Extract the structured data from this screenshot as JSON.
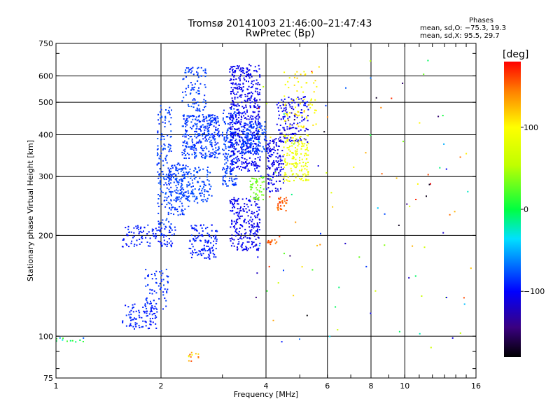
{
  "title": "Tromsø 20141003 21:46:00–21:47:43",
  "subtitle": "RwPretec (Bp)",
  "phases": {
    "heading": "Phases",
    "o_line": "mean, sd,O: −75.3, 19.3",
    "x_line": "mean, sd,X:  95.5, 29.7"
  },
  "chart_data": {
    "type": "scatter",
    "title": "Tromsø 20141003 21:46:00–21:47:43",
    "subtitle": "RwPretec (Bp)",
    "xlabel": "Frequency [MHz]",
    "ylabel": "Stationary phase Virtual Height [km]",
    "x_scale": "log",
    "y_scale": "log",
    "xlim": [
      1,
      16
    ],
    "ylim": [
      75,
      750
    ],
    "x_ticks": [
      1,
      2,
      4,
      6,
      8,
      10,
      16
    ],
    "x_tick_labels": [
      "1",
      "2",
      "4",
      "6",
      "8",
      "10",
      "16"
    ],
    "y_ticks": [
      75,
      100,
      200,
      300,
      400,
      500,
      600,
      750
    ],
    "y_tick_labels": [
      "75",
      "100",
      "200",
      "300",
      "400",
      "500",
      "600",
      "750"
    ],
    "grid": true,
    "colorbar": {
      "label": "[deg]",
      "range": [
        -180,
        180
      ],
      "ticks": [
        100,
        0,
        -100
      ],
      "tick_labels": [
        "100",
        "0",
        "−100"
      ]
    },
    "clusters": [
      {
        "x": [
          1.55,
          1.95
        ],
        "y": [
          105,
          125
        ],
        "n": 90,
        "phase": [
          -100,
          -85
        ]
      },
      {
        "x": [
          1.8,
          2.1
        ],
        "y": [
          120,
          160
        ],
        "n": 70,
        "phase": [
          -95,
          -80
        ]
      },
      {
        "x": [
          1.55,
          2.2
        ],
        "y": [
          185,
          215
        ],
        "n": 110,
        "phase": [
          -100,
          -85
        ]
      },
      {
        "x": [
          1.95,
          2.15
        ],
        "y": [
          210,
          490
        ],
        "n": 160,
        "phase": [
          -90,
          -75
        ]
      },
      {
        "x": [
          2.1,
          2.4
        ],
        "y": [
          230,
          330
        ],
        "n": 120,
        "phase": [
          -90,
          -80
        ]
      },
      {
        "x": [
          2.3,
          2.95
        ],
        "y": [
          340,
          460
        ],
        "n": 320,
        "phase": [
          -95,
          -75
        ]
      },
      {
        "x": [
          2.3,
          2.7
        ],
        "y": [
          470,
          640
        ],
        "n": 90,
        "phase": [
          -90,
          -75
        ]
      },
      {
        "x": [
          2.2,
          2.8
        ],
        "y": [
          250,
          320
        ],
        "n": 150,
        "phase": [
          -85,
          -75
        ]
      },
      {
        "x": [
          2.4,
          2.9
        ],
        "y": [
          170,
          215
        ],
        "n": 120,
        "phase": [
          -100,
          -85
        ]
      },
      {
        "x": [
          3.0,
          3.3
        ],
        "y": [
          280,
          480
        ],
        "n": 170,
        "phase": [
          -90,
          -75
        ]
      },
      {
        "x": [
          3.15,
          3.85
        ],
        "y": [
          310,
          650
        ],
        "n": 520,
        "phase": [
          -115,
          -95
        ]
      },
      {
        "x": [
          3.15,
          3.85
        ],
        "y": [
          180,
          260
        ],
        "n": 230,
        "phase": [
          -115,
          -95
        ]
      },
      {
        "x": [
          3.4,
          4.0
        ],
        "y": [
          350,
          440
        ],
        "n": 160,
        "phase": [
          -90,
          -75
        ]
      },
      {
        "x": [
          3.6,
          3.95
        ],
        "y": [
          255,
          300
        ],
        "n": 50,
        "phase": [
          20,
          40
        ]
      },
      {
        "x": [
          4.0,
          4.5
        ],
        "y": [
          270,
          390
        ],
        "n": 140,
        "phase": [
          -120,
          -95
        ]
      },
      {
        "x": [
          4.3,
          5.3
        ],
        "y": [
          380,
          520
        ],
        "n": 140,
        "phase": [
          -120,
          -95
        ]
      },
      {
        "x": [
          4.5,
          5.3
        ],
        "y": [
          290,
          400
        ],
        "n": 150,
        "phase": [
          75,
          100
        ]
      },
      {
        "x": [
          4.5,
          5.6
        ],
        "y": [
          420,
          620
        ],
        "n": 70,
        "phase": [
          90,
          120
        ]
      },
      {
        "x": [
          4.3,
          4.6
        ],
        "y": [
          235,
          260
        ],
        "n": 30,
        "phase": [
          145,
          165
        ]
      },
      {
        "x": [
          4.0,
          4.3
        ],
        "y": [
          188,
          195
        ],
        "n": 15,
        "phase": [
          145,
          165
        ]
      },
      {
        "x": [
          2.4,
          2.6
        ],
        "y": [
          84,
          90
        ],
        "n": 12,
        "phase": [
          80,
          165
        ]
      },
      {
        "x": [
          1.0,
          1.2
        ],
        "y": [
          96,
          99
        ],
        "n": 12,
        "phase": [
          -75,
          20
        ]
      },
      {
        "x": [
          3.7,
          15.5
        ],
        "y": [
          90,
          680
        ],
        "n": 110,
        "phase": [
          -180,
          180
        ]
      }
    ]
  }
}
